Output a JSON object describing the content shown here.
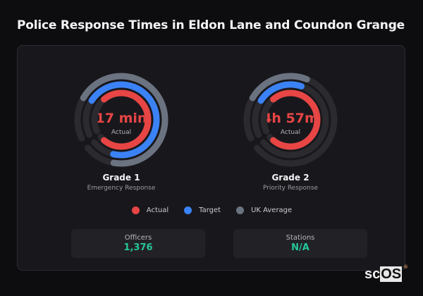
{
  "header": {
    "title": "Police Response Times in Eldon Lane and Coundon Grange"
  },
  "colors": {
    "actual": "#e84545",
    "target": "#3b82f6",
    "uk_average": "#6b7280",
    "track": "#2a2a2f",
    "stat_value": "#25c79a"
  },
  "gauges": [
    {
      "name": "Grade 1",
      "description": "Emergency Response",
      "value": "17 min",
      "value_label": "Actual",
      "arcs": {
        "uk_average": {
          "start": 300,
          "end": 550
        },
        "target": {
          "start": 303,
          "end": 553
        },
        "actual": {
          "start": 320,
          "end": 580
        }
      }
    },
    {
      "name": "Grade 2",
      "description": "Priority Response",
      "value": "4h 57m",
      "value_label": "Actual",
      "arcs": {
        "uk_average": {
          "start": 300,
          "end": 382
        },
        "target": {
          "start": 303,
          "end": 378
        },
        "actual": {
          "start": 320,
          "end": 580
        }
      }
    }
  ],
  "legend": [
    {
      "label": "Actual",
      "color": "#e84545"
    },
    {
      "label": "Target",
      "color": "#3b82f6"
    },
    {
      "label": "UK Average",
      "color": "#6b7280"
    }
  ],
  "stats": [
    {
      "label": "Officers",
      "value": "1,376"
    },
    {
      "label": "Stations",
      "value": "N/A"
    }
  ],
  "logo": {
    "prefix": "sc",
    "suffix": "OS",
    "mark": "®"
  }
}
